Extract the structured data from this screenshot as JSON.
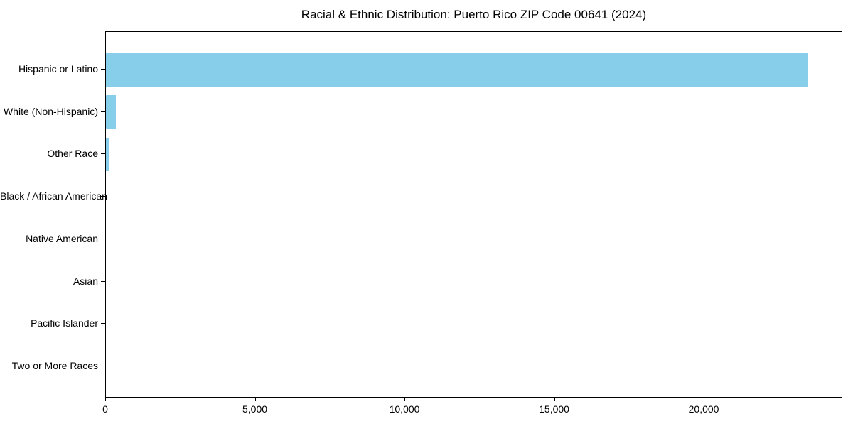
{
  "title": "Racial & Ethnic Distribution: Puerto Rico ZIP Code 00641 (2024)",
  "chart_data": {
    "type": "bar",
    "orientation": "horizontal",
    "title": "Racial & Ethnic Distribution: Puerto Rico ZIP Code 00641 (2024)",
    "xlabel": "",
    "ylabel": "",
    "categories": [
      "Hispanic or Latino",
      "White (Non-Hispanic)",
      "Other Race",
      "Black / African American",
      "Native American",
      "Asian",
      "Pacific Islander",
      "Two or More Races"
    ],
    "values": [
      23450,
      330,
      95,
      0,
      0,
      0,
      0,
      0
    ],
    "xlim": [
      0,
      24630
    ],
    "x_ticks": [
      0,
      5000,
      10000,
      15000,
      20000
    ],
    "x_tick_labels": [
      "0",
      "5,000",
      "10,000",
      "15,000",
      "20,000"
    ],
    "grid": false,
    "legend": null,
    "bar_color": "#87CEEB",
    "text_color": "#000000",
    "spine_color": "#000000"
  }
}
